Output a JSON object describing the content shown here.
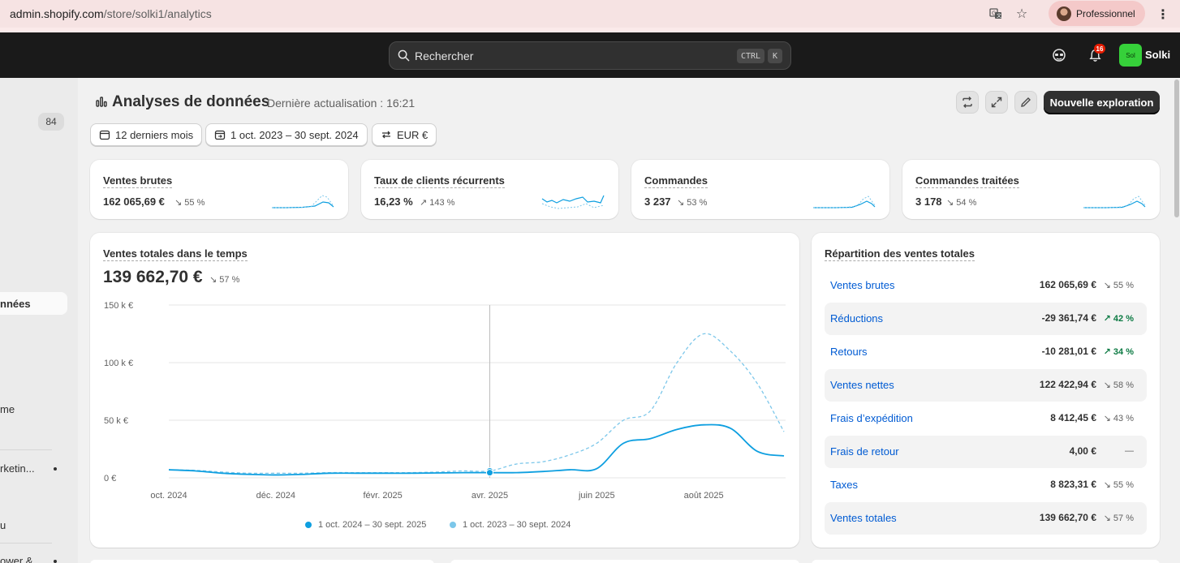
{
  "browser": {
    "url_host": "admin.shopify.com",
    "url_path": "/store/solki1/analytics",
    "profile_label": "Professionnel"
  },
  "topbar": {
    "search_placeholder": "Rechercher",
    "shortcut_ctrl": "CTRL",
    "shortcut_key": "K",
    "notification_count": "16",
    "store_avatar_text": "Sol",
    "store_name": "Solki"
  },
  "sidebar": {
    "badge": "84",
    "items": [
      "nnées",
      "me",
      "rketin...",
      "u",
      "ower &"
    ]
  },
  "header": {
    "title": "Analyses de données",
    "last_update": "Dernière actualisation : 16:21",
    "new_exploration": "Nouvelle exploration"
  },
  "filters": {
    "period": "12 derniers mois",
    "date_range": "1 oct. 2023 – 30 sept. 2024",
    "currency": "EUR €"
  },
  "metrics": [
    {
      "title": "Ventes brutes",
      "value": "162 065,69 €",
      "delta": "↘ 55 %"
    },
    {
      "title": "Taux de clients récurrents",
      "value": "16,23 %",
      "delta": "↗ 143 %"
    },
    {
      "title": "Commandes",
      "value": "3 237",
      "delta": "↘ 53 %"
    },
    {
      "title": "Commandes traitées",
      "value": "3 178",
      "delta": "↘ 54 %"
    }
  ],
  "sales_chart": {
    "title": "Ventes totales dans le temps",
    "value": "139 662,70 €",
    "delta": "↘ 57 %",
    "legend": [
      "1 oct. 2024 – 30 sept. 2025",
      "1 oct. 2023 – 30 sept. 2024"
    ]
  },
  "chart_data": {
    "type": "line",
    "title": "Ventes totales dans le temps",
    "x_tick_labels": [
      "oct. 2024",
      "déc. 2024",
      "févr. 2025",
      "avr. 2025",
      "juin 2025",
      "août 2025"
    ],
    "y_tick_labels": [
      "0 €",
      "50 k €",
      "100 k €",
      "150 k €"
    ],
    "ylim": [
      0,
      150000
    ],
    "xlim": [
      0,
      11.5
    ],
    "x": [
      0,
      0.5,
      1,
      1.5,
      2,
      2.5,
      3,
      3.5,
      4,
      4.5,
      5,
      5.5,
      6,
      6.5,
      7,
      7.5,
      8,
      8.5,
      9,
      9.5,
      10,
      10.5,
      11,
      11.5
    ],
    "series": [
      {
        "name": "1 oct. 2024 – 30 sept. 2025",
        "color": "#0e9fe0",
        "dashed": false,
        "values": [
          7000,
          6000,
          4000,
          3000,
          2500,
          3000,
          4000,
          4000,
          4000,
          4000,
          4200,
          4500,
          4500,
          4500,
          5500,
          7000,
          8000,
          30000,
          34000,
          42000,
          46000,
          43000,
          23000,
          19000
        ]
      },
      {
        "name": "1 oct. 2023 – 30 sept. 2024",
        "color": "#7cc7ea",
        "dashed": true,
        "values": [
          7000,
          6500,
          5000,
          4000,
          4000,
          4000,
          4500,
          4500,
          4500,
          4500,
          5000,
          6000,
          6000,
          12000,
          14000,
          20000,
          30000,
          50000,
          58000,
          100000,
          125000,
          110000,
          82000,
          40000
        ]
      }
    ],
    "hover_x": 6,
    "grid": true,
    "legend_position": "bottom-center"
  },
  "breakdown": {
    "title": "Répartition des ventes totales",
    "rows": [
      {
        "label": "Ventes brutes",
        "value": "162 065,69 €",
        "delta": "↘ 55 %",
        "up": false
      },
      {
        "label": "Réductions",
        "value": "-29 361,74 €",
        "delta": "↗ 42 %",
        "up": true
      },
      {
        "label": "Retours",
        "value": "-10 281,01 €",
        "delta": "↗ 34 %",
        "up": true
      },
      {
        "label": "Ventes nettes",
        "value": "122 422,94 €",
        "delta": "↘ 58 %",
        "up": false
      },
      {
        "label": "Frais d’expédition",
        "value": "8 412,45 €",
        "delta": "↘ 43 %",
        "up": false
      },
      {
        "label": "Frais de retour",
        "value": "4,00 €",
        "delta": "—",
        "up": false
      },
      {
        "label": "Taxes",
        "value": "8 823,31 €",
        "delta": "↘ 55 %",
        "up": false
      },
      {
        "label": "Ventes totales",
        "value": "139 662,70 €",
        "delta": "↘ 57 %",
        "up": false
      }
    ]
  }
}
